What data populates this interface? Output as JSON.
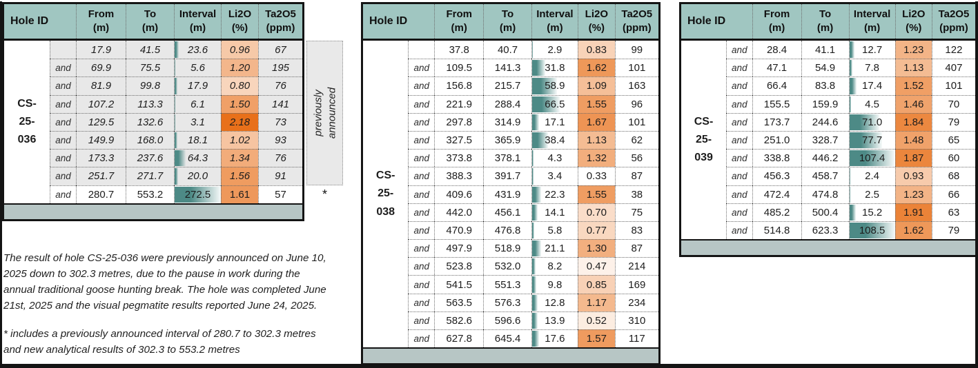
{
  "colors": {
    "header_teal": "#a0c6c1",
    "footer_strip": "#b7c6c5",
    "prev_row_gray": "#e8e8e8",
    "sidebar_gray": "#e9e9e9",
    "interval_bar_teal": "#4d8a86",
    "li2o_scale_max_orange": "#e8701a",
    "table_border_black": "#141414"
  },
  "header": {
    "hole_id": "Hole ID",
    "columns": [
      {
        "key": "from",
        "line1": "From",
        "line2": "(m)"
      },
      {
        "key": "to",
        "line1": "To",
        "line2": "(m)"
      },
      {
        "key": "interval",
        "line1": "Interval",
        "line2": "(m)"
      },
      {
        "key": "li2o",
        "line1": "Li2O",
        "line2": "(%)"
      },
      {
        "key": "ta2o5",
        "line1": "Ta2O5",
        "line2": "(ppm)"
      }
    ]
  },
  "li2o_color_scale": {
    "min_value": 0.33,
    "max_value": 2.18
  },
  "tables": [
    {
      "id": "CS-25-036",
      "id_lines": [
        "CS-",
        "25-",
        "036"
      ],
      "bar_scale_max": 272.5,
      "side_note": {
        "words": [
          "previously",
          "announced"
        ]
      },
      "star_marker": "*",
      "rows": [
        {
          "and": "",
          "from": "17.9",
          "to": "41.5",
          "interval": "23.6",
          "li2o": "0.96",
          "ta2o5": "67",
          "previously_announced": true
        },
        {
          "and": "and",
          "from": "69.9",
          "to": "75.5",
          "interval": "5.6",
          "li2o": "1.20",
          "ta2o5": "195",
          "previously_announced": true
        },
        {
          "and": "and",
          "from": "81.9",
          "to": "99.8",
          "interval": "17.9",
          "li2o": "0.80",
          "ta2o5": "76",
          "previously_announced": true
        },
        {
          "and": "and",
          "from": "107.2",
          "to": "113.3",
          "interval": "6.1",
          "li2o": "1.50",
          "ta2o5": "141",
          "previously_announced": true
        },
        {
          "and": "and",
          "from": "129.5",
          "to": "132.6",
          "interval": "3.1",
          "li2o": "2.18",
          "ta2o5": "73",
          "previously_announced": true
        },
        {
          "and": "and",
          "from": "149.9",
          "to": "168.0",
          "interval": "18.1",
          "li2o": "1.02",
          "ta2o5": "93",
          "previously_announced": true
        },
        {
          "and": "and",
          "from": "173.3",
          "to": "237.6",
          "interval": "64.3",
          "li2o": "1.34",
          "ta2o5": "76",
          "previously_announced": true
        },
        {
          "and": "and",
          "from": "251.7",
          "to": "271.7",
          "interval": "20.0",
          "li2o": "1.56",
          "ta2o5": "91",
          "previously_announced": true
        },
        {
          "and": "and",
          "from": "280.7",
          "to": "553.2",
          "interval": "272.5",
          "li2o": "1.61",
          "ta2o5": "57",
          "previously_announced": false
        }
      ]
    },
    {
      "id": "CS-25-038",
      "id_lines": [
        "CS-",
        "25-",
        "038"
      ],
      "bar_scale_max": 108.5,
      "rows": [
        {
          "and": "",
          "from": "37.8",
          "to": "40.7",
          "interval": "2.9",
          "li2o": "0.83",
          "ta2o5": "99"
        },
        {
          "and": "and",
          "from": "109.5",
          "to": "141.3",
          "interval": "31.8",
          "li2o": "1.62",
          "ta2o5": "101"
        },
        {
          "and": "and",
          "from": "156.8",
          "to": "215.7",
          "interval": "58.9",
          "li2o": "1.09",
          "ta2o5": "163"
        },
        {
          "and": "and",
          "from": "221.9",
          "to": "288.4",
          "interval": "66.5",
          "li2o": "1.55",
          "ta2o5": "96"
        },
        {
          "and": "and",
          "from": "297.8",
          "to": "314.9",
          "interval": "17.1",
          "li2o": "1.67",
          "ta2o5": "101"
        },
        {
          "and": "and",
          "from": "327.5",
          "to": "365.9",
          "interval": "38.4",
          "li2o": "1.13",
          "ta2o5": "62"
        },
        {
          "and": "and",
          "from": "373.8",
          "to": "378.1",
          "interval": "4.3",
          "li2o": "1.32",
          "ta2o5": "56"
        },
        {
          "and": "and",
          "from": "388.3",
          "to": "391.7",
          "interval": "3.4",
          "li2o": "0.33",
          "ta2o5": "87"
        },
        {
          "and": "and",
          "from": "409.6",
          "to": "431.9",
          "interval": "22.3",
          "li2o": "1.55",
          "ta2o5": "38"
        },
        {
          "and": "and",
          "from": "442.0",
          "to": "456.1",
          "interval": "14.1",
          "li2o": "0.70",
          "ta2o5": "75"
        },
        {
          "and": "and",
          "from": "470.9",
          "to": "476.8",
          "interval": "5.8",
          "li2o": "0.77",
          "ta2o5": "83"
        },
        {
          "and": "and",
          "from": "497.9",
          "to": "518.9",
          "interval": "21.1",
          "li2o": "1.30",
          "ta2o5": "87"
        },
        {
          "and": "and",
          "from": "523.8",
          "to": "532.0",
          "interval": "8.2",
          "li2o": "0.47",
          "ta2o5": "214"
        },
        {
          "and": "and",
          "from": "541.5",
          "to": "551.3",
          "interval": "9.8",
          "li2o": "0.85",
          "ta2o5": "169"
        },
        {
          "and": "and",
          "from": "563.5",
          "to": "576.3",
          "interval": "12.8",
          "li2o": "1.17",
          "ta2o5": "234"
        },
        {
          "and": "and",
          "from": "582.6",
          "to": "596.6",
          "interval": "13.9",
          "li2o": "0.52",
          "ta2o5": "310"
        },
        {
          "and": "and",
          "from": "627.8",
          "to": "645.4",
          "interval": "17.6",
          "li2o": "1.57",
          "ta2o5": "117"
        }
      ]
    },
    {
      "id": "CS-25-039",
      "id_lines": [
        "CS-",
        "25-",
        "039"
      ],
      "bar_scale_max": 108.5,
      "rows": [
        {
          "and": "and",
          "from": "28.4",
          "to": "41.1",
          "interval": "12.7",
          "li2o": "1.23",
          "ta2o5": "122"
        },
        {
          "and": "and",
          "from": "47.1",
          "to": "54.9",
          "interval": "7.8",
          "li2o": "1.13",
          "ta2o5": "407"
        },
        {
          "and": "and",
          "from": "66.4",
          "to": "83.8",
          "interval": "17.4",
          "li2o": "1.52",
          "ta2o5": "101"
        },
        {
          "and": "and",
          "from": "155.5",
          "to": "159.9",
          "interval": "4.5",
          "li2o": "1.46",
          "ta2o5": "70"
        },
        {
          "and": "and",
          "from": "173.7",
          "to": "244.6",
          "interval": "71.0",
          "li2o": "1.84",
          "ta2o5": "79"
        },
        {
          "and": "and",
          "from": "251.0",
          "to": "328.7",
          "interval": "77.7",
          "li2o": "1.48",
          "ta2o5": "65"
        },
        {
          "and": "and",
          "from": "338.8",
          "to": "446.2",
          "interval": "107.4",
          "li2o": "1.87",
          "ta2o5": "60"
        },
        {
          "and": "and",
          "from": "456.3",
          "to": "458.7",
          "interval": "2.4",
          "li2o": "0.93",
          "ta2o5": "68"
        },
        {
          "and": "and",
          "from": "472.4",
          "to": "474.8",
          "interval": "2.5",
          "li2o": "1.23",
          "ta2o5": "66"
        },
        {
          "and": "and",
          "from": "485.2",
          "to": "500.4",
          "interval": "15.2",
          "li2o": "1.91",
          "ta2o5": "63"
        },
        {
          "and": "and",
          "from": "514.8",
          "to": "623.3",
          "interval": "108.5",
          "li2o": "1.62",
          "ta2o5": "79"
        }
      ]
    }
  ],
  "footnotes": {
    "announcement": "The result of hole CS-25-036 were previously announced on June 10, 2025 down to 302.3 metres, due to the pause in work during the annual traditional goose hunting break.  The hole was completed June 21st, 2025 and the visual pegmatite results reported June 24, 2025.",
    "star_note": "* includes a previously announced interval of 280.7 to 302.3 metres and new analytical results of 302.3 to 553.2 metres"
  }
}
